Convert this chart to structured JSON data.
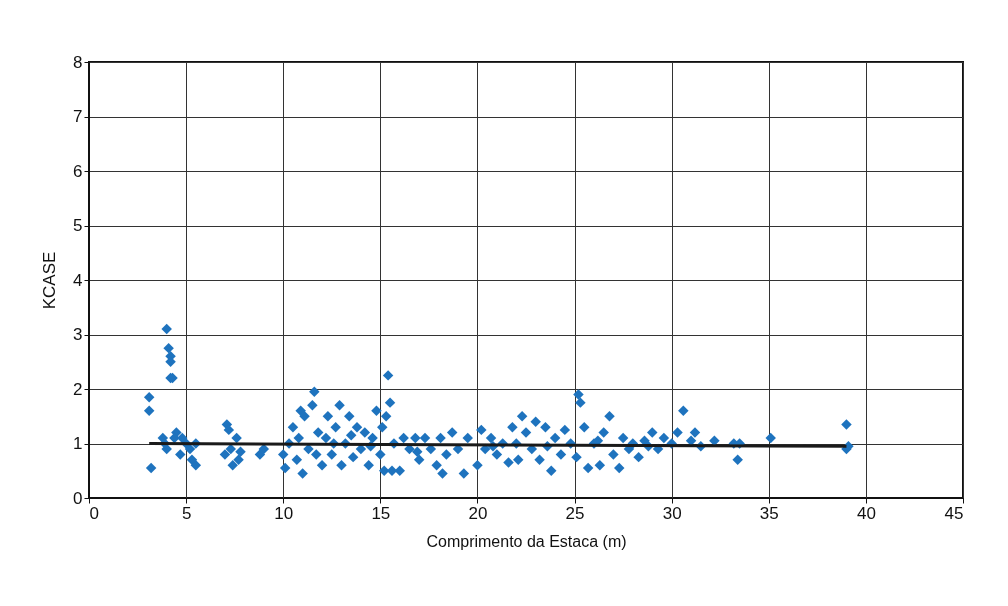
{
  "chart_data": {
    "type": "scatter",
    "xlabel": "Comprimento da Estaca (m)",
    "ylabel": "KCASE",
    "xlim": [
      0,
      45
    ],
    "xticks": [
      0,
      5,
      10,
      15,
      20,
      25,
      30,
      35,
      40,
      45
    ],
    "ylim": [
      0,
      8
    ],
    "yticks": [
      0,
      1,
      2,
      3,
      4,
      5,
      6,
      7,
      8
    ],
    "grid": true,
    "series": [
      {
        "color": "#1e73be",
        "marker": "diamond",
        "x": [
          3.1,
          3.1,
          3.2,
          4.0,
          4.1,
          4.2,
          4.2,
          4.2,
          4.3,
          3.8,
          4.0,
          4.5,
          4.7,
          5.0,
          5.2,
          5.5,
          5.5,
          4.4,
          3.9,
          4.8,
          5.3,
          7.1,
          7.2,
          7.0,
          7.4,
          7.6,
          7.7,
          7.3,
          7.8,
          8.8,
          9.0,
          10.0,
          10.1,
          10.3,
          10.5,
          10.7,
          10.9,
          11.0,
          11.1,
          11.3,
          11.5,
          11.6,
          11.8,
          12.0,
          12.2,
          12.3,
          12.5,
          12.7,
          12.9,
          13.0,
          13.2,
          13.4,
          13.6,
          13.8,
          14.0,
          14.2,
          14.4,
          14.6,
          14.8,
          15.0,
          15.1,
          15.2,
          15.3,
          15.4,
          15.5,
          15.6,
          15.7,
          16.0,
          16.2,
          16.5,
          16.8,
          17.0,
          17.3,
          17.6,
          17.9,
          18.1,
          18.2,
          18.4,
          18.7,
          19.0,
          19.3,
          19.5,
          20.0,
          20.2,
          20.4,
          20.7,
          21.0,
          21.3,
          21.6,
          21.8,
          22.1,
          22.3,
          22.5,
          22.8,
          23.0,
          23.2,
          23.5,
          23.8,
          24.0,
          24.3,
          24.5,
          24.8,
          25.1,
          25.2,
          25.3,
          25.5,
          25.7,
          26.0,
          26.3,
          26.5,
          26.8,
          27.0,
          27.3,
          27.5,
          27.8,
          28.0,
          28.3,
          28.6,
          29.0,
          29.3,
          29.6,
          30.0,
          30.3,
          30.6,
          31.0,
          31.2,
          31.5,
          32.2,
          33.2,
          33.4,
          33.5,
          35.1,
          39.0,
          39.0,
          39.1,
          10.8,
          11.7,
          12.6,
          13.5,
          14.5,
          16.9,
          20.8,
          22.0,
          23.6,
          26.2,
          28.8
        ],
        "values": [
          1.85,
          1.6,
          0.55,
          3.1,
          2.75,
          2.6,
          2.5,
          2.2,
          2.2,
          1.1,
          0.9,
          1.2,
          0.8,
          1.0,
          0.9,
          0.6,
          1.0,
          1.1,
          1.0,
          1.1,
          0.7,
          1.35,
          1.25,
          0.8,
          0.6,
          1.1,
          0.7,
          0.9,
          0.85,
          0.8,
          0.9,
          0.8,
          0.55,
          1.0,
          1.3,
          0.7,
          1.6,
          0.45,
          1.5,
          0.9,
          1.7,
          1.95,
          1.2,
          0.6,
          1.1,
          1.5,
          0.8,
          1.3,
          1.7,
          0.6,
          1.0,
          1.5,
          0.75,
          1.3,
          0.9,
          1.2,
          0.6,
          1.1,
          1.6,
          0.8,
          1.3,
          0.5,
          1.5,
          2.25,
          1.75,
          0.5,
          1.0,
          0.5,
          1.1,
          0.9,
          1.1,
          0.7,
          1.1,
          0.9,
          0.6,
          1.1,
          0.45,
          0.8,
          1.2,
          0.9,
          0.45,
          1.1,
          0.6,
          1.25,
          0.9,
          1.1,
          0.8,
          1.0,
          0.65,
          1.3,
          0.7,
          1.5,
          1.2,
          0.9,
          1.4,
          0.7,
          1.3,
          0.5,
          1.1,
          0.8,
          1.25,
          1.0,
          0.75,
          1.9,
          1.75,
          1.3,
          0.55,
          1.0,
          0.6,
          1.2,
          1.5,
          0.8,
          0.55,
          1.1,
          0.9,
          1.0,
          0.75,
          1.05,
          1.2,
          0.9,
          1.1,
          1.0,
          1.2,
          1.6,
          1.05,
          1.2,
          0.95,
          1.05,
          1.0,
          0.7,
          1.0,
          1.1,
          1.35,
          0.9,
          0.95,
          1.1,
          0.8,
          1.0,
          1.15,
          0.95,
          0.85,
          0.95,
          1.0,
          0.95,
          1.05,
          0.95
        ]
      },
      {
        "type": "line",
        "marker": "none",
        "color": "#1a1a1a",
        "x": [
          3.1,
          39.0
        ],
        "values": [
          1.0,
          0.95
        ]
      }
    ]
  }
}
